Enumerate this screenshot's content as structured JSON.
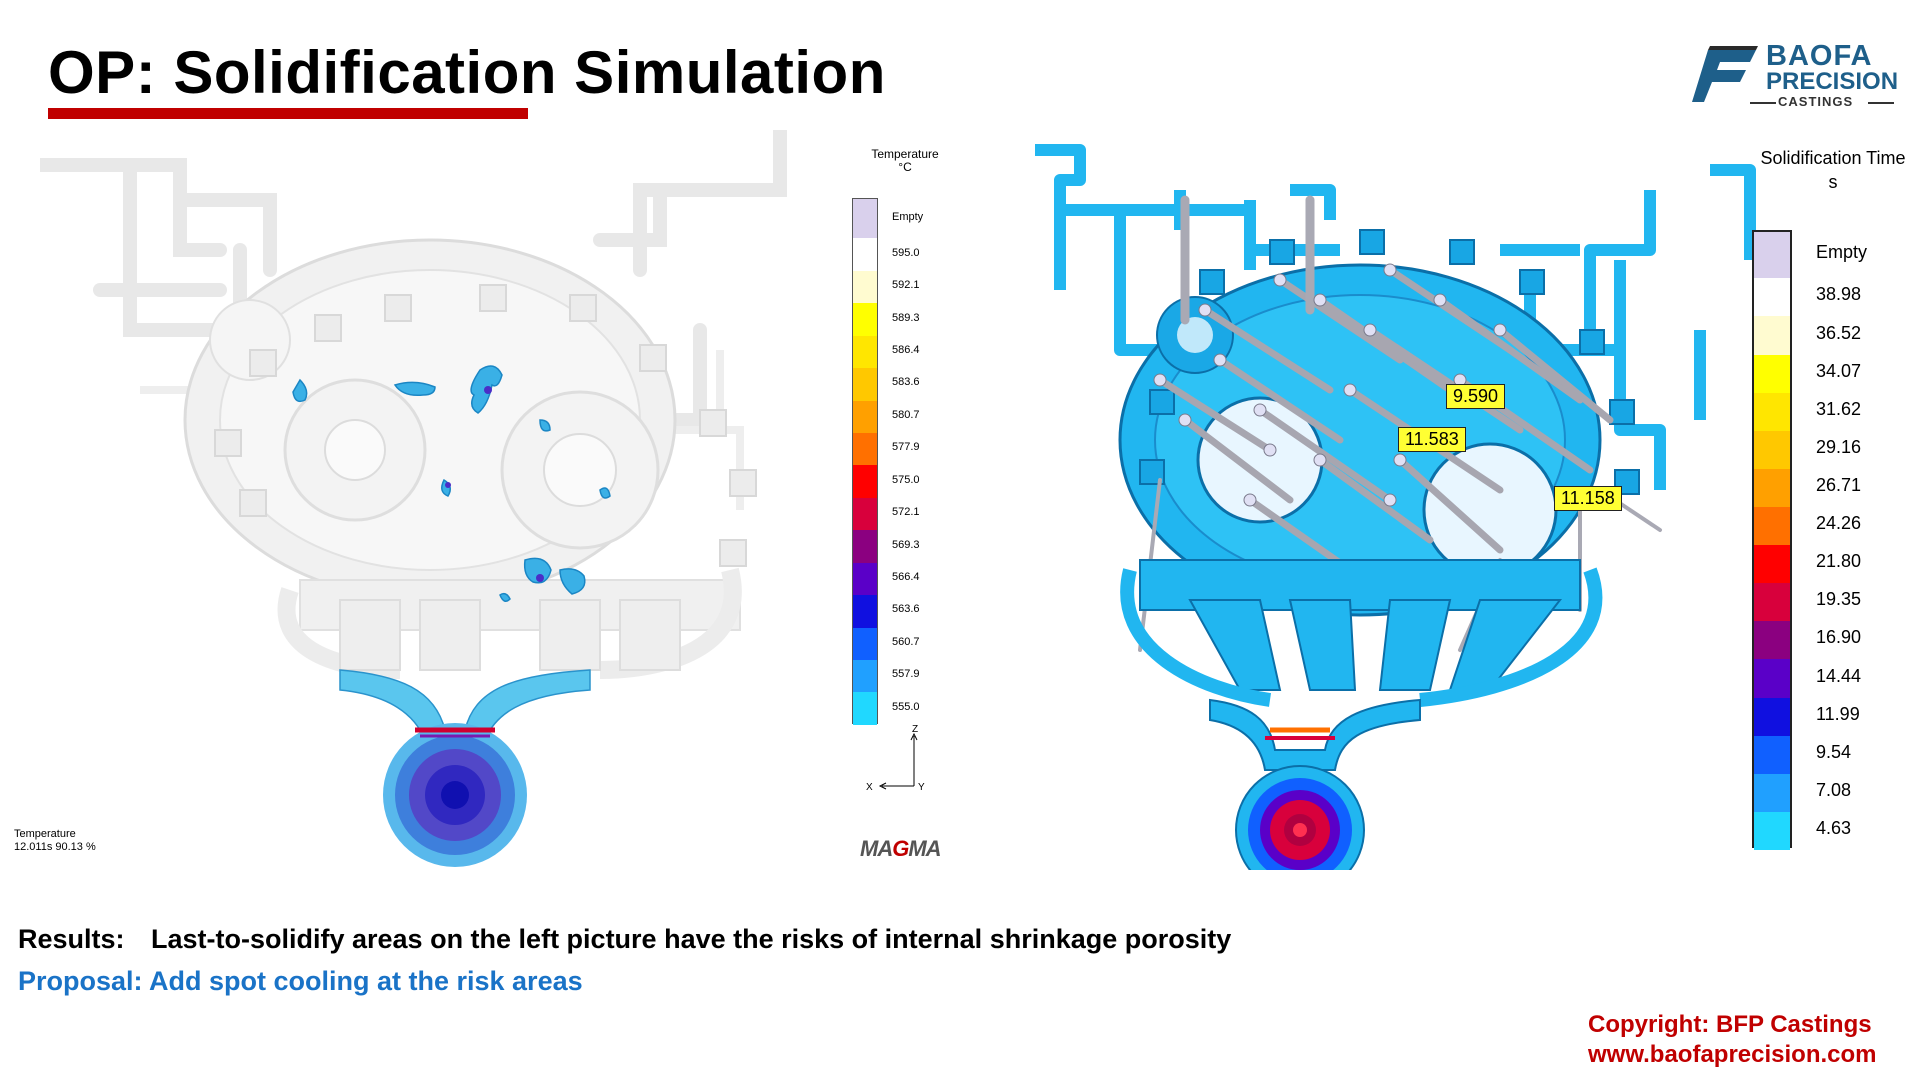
{
  "title": "OP: Solidification Simulation",
  "logo": {
    "line1": "BAOFA",
    "line2": "PRECISION",
    "line3": "CASTINGS"
  },
  "left_legend": {
    "title_line1": "Temperature",
    "title_line2": "°C",
    "labels": [
      "Empty",
      "595.0",
      "592.1",
      "589.3",
      "586.4",
      "583.6",
      "580.7",
      "577.9",
      "575.0",
      "572.1",
      "569.3",
      "566.4",
      "563.6",
      "560.7",
      "557.9",
      "555.0"
    ],
    "colors": [
      "#d9d0ec",
      "#ffffff",
      "#fffbd0",
      "#ffff00",
      "#ffe600",
      "#ffc800",
      "#ffa000",
      "#ff7000",
      "#ff0000",
      "#d8003c",
      "#8b0080",
      "#5a00c8",
      "#1010e0",
      "#1060ff",
      "#20a0ff",
      "#20d8ff"
    ]
  },
  "right_legend": {
    "title_line1": "Solidification Time",
    "title_line2": "s",
    "labels": [
      "Empty",
      "38.98",
      "36.52",
      "34.07",
      "31.62",
      "29.16",
      "26.71",
      "24.26",
      "21.80",
      "19.35",
      "16.90",
      "14.44",
      "11.99",
      "9.54",
      "7.08",
      "4.63"
    ],
    "colors": [
      "#d9d0ec",
      "#ffffff",
      "#fffbd0",
      "#ffff00",
      "#ffe600",
      "#ffc800",
      "#ffa000",
      "#ff7000",
      "#ff0000",
      "#d8003c",
      "#8b0080",
      "#5a00c8",
      "#1010e0",
      "#1060ff",
      "#20a0ff",
      "#20d8ff"
    ]
  },
  "left_caption": {
    "line1": "Temperature",
    "line2": "12.011s 90.13 %"
  },
  "axis": {
    "z": "Z",
    "x": "X",
    "y": "Y"
  },
  "magma": {
    "pre": "MA",
    "mid": "G",
    "post": "MA"
  },
  "callouts": [
    "9.590",
    "11.583",
    "11.158"
  ],
  "results": {
    "label": "Results:",
    "text": "Last-to-solidify areas on the left picture have the risks of internal shrinkage porosity"
  },
  "proposal": "Proposal: Add spot cooling at the risk areas",
  "copyright": {
    "line1": "Copyright: BFP Castings",
    "line2": "www.baofaprecision.com"
  },
  "colors": {
    "accent_red": "#c00000",
    "proposal_blue": "#1a73c7",
    "logo_blue": "#1e5f8a",
    "casting_cyan": "#21b6f0"
  }
}
